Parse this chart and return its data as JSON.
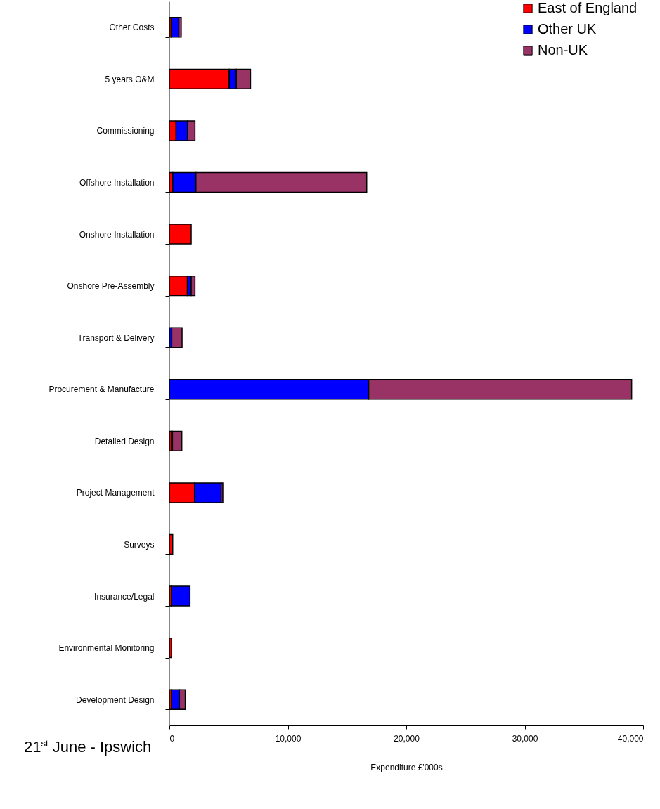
{
  "chart_data": {
    "type": "bar",
    "orientation": "horizontal",
    "stacked": true,
    "xlabel": "Expenditure £'000s",
    "categories": [
      "Other Costs",
      "5 years O&M",
      "Commissioning",
      "Offshore Installation",
      "Onshore Installation",
      "Onshore Pre-Assembly",
      "Transport & Delivery",
      "Procurement & Manufacture",
      "Detailed Design",
      "Project Management",
      "Surveys",
      "Insurance/Legal",
      "Environmental Monitoring",
      "Development Design"
    ],
    "series": [
      {
        "name": "East of England",
        "color": "#ff0000",
        "values": [
          150,
          5050,
          560,
          280,
          1840,
          1520,
          null,
          0,
          160,
          2120,
          280,
          160,
          180,
          160
        ]
      },
      {
        "name": "Other UK",
        "color": "#0000ff",
        "values": [
          650,
          600,
          970,
          1960,
          0,
          320,
          200,
          16830,
          100,
          2250,
          0,
          1580,
          0,
          690
        ]
      },
      {
        "name": "Non-UK",
        "color": "#993366",
        "values": [
          200,
          1200,
          630,
          14420,
          0,
          320,
          870,
          22200,
          790,
          140,
          0,
          0,
          0,
          490
        ]
      }
    ],
    "xlim": [
      0,
      40000
    ],
    "xticks": [
      0,
      {
        "value": 10000,
        "label": "10,000"
      },
      {
        "value": 20000,
        "label": "20,000"
      },
      {
        "value": 30000,
        "label": "30,000"
      },
      {
        "value": 40000,
        "label": "40,000"
      }
    ],
    "grid": false,
    "legend": "top right",
    "annotations": [
      "21$^{st}$ June - Ipswich"
    ]
  }
}
